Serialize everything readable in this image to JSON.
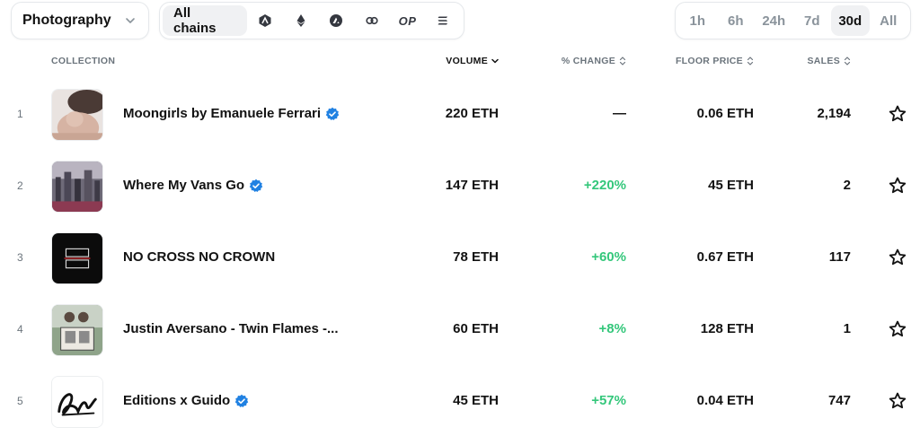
{
  "filters": {
    "category": "Photography",
    "all_chains_label": "All chains",
    "chains": [
      {
        "icon": "arbitrum-icon"
      },
      {
        "icon": "ethereum-icon"
      },
      {
        "icon": "avalanche-icon"
      },
      {
        "icon": "polygon-icon"
      },
      {
        "icon": "optimism-icon",
        "label": "OP"
      },
      {
        "icon": "solana-icon"
      }
    ],
    "timeframes": [
      "1h",
      "6h",
      "24h",
      "7d",
      "30d",
      "All"
    ],
    "active_timeframe": "30d"
  },
  "table": {
    "headers": {
      "collection": "COLLECTION",
      "volume": "VOLUME",
      "change": "% CHANGE",
      "floor": "FLOOR PRICE",
      "sales": "SALES"
    },
    "rows": [
      {
        "rank": "1",
        "name": "Moongirls by Emanuele Ferrari",
        "verified": true,
        "volume": "220 ETH",
        "change": "—",
        "floor": "0.06 ETH",
        "sales": "2,194"
      },
      {
        "rank": "2",
        "name": "Where My Vans Go",
        "verified": true,
        "volume": "147 ETH",
        "change": "+220%",
        "floor": "45 ETH",
        "sales": "2"
      },
      {
        "rank": "3",
        "name": "NO CROSS NO CROWN",
        "verified": false,
        "volume": "78 ETH",
        "change": "+60%",
        "floor": "0.67 ETH",
        "sales": "117"
      },
      {
        "rank": "4",
        "name": "Justin Aversano - Twin Flames -...",
        "verified": false,
        "volume": "60 ETH",
        "change": "+8%",
        "floor": "128 ETH",
        "sales": "1"
      },
      {
        "rank": "5",
        "name": "Editions x Guido",
        "verified": true,
        "volume": "45 ETH",
        "change": "+57%",
        "floor": "0.04 ETH",
        "sales": "747"
      }
    ]
  },
  "colors": {
    "positive": "#34c77b",
    "verified": "#2081e2",
    "muted": "#6b747c"
  }
}
